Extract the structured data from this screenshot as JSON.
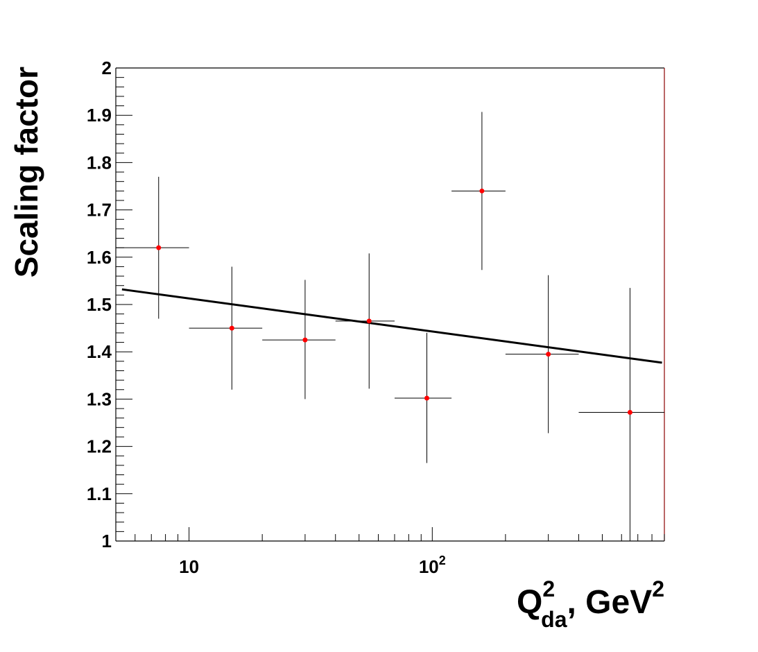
{
  "chart_data": {
    "type": "scatter",
    "title": "",
    "xlabel": {
      "main": "Q",
      "sup": "2",
      "sub": "da",
      "suffix": ", GeV",
      "suffix_sup": "2"
    },
    "ylabel": "Scaling factor",
    "x_scale": "log",
    "xlim": [
      5,
      900
    ],
    "ylim": [
      1,
      2
    ],
    "grid": false,
    "legend": "none",
    "y_ticks": [
      "1",
      "1.1",
      "1.2",
      "1.3",
      "1.4",
      "1.5",
      "1.6",
      "1.7",
      "1.8",
      "1.9",
      "2"
    ],
    "x_tick_labels": [
      {
        "value": 10,
        "base": "10",
        "exp": ""
      },
      {
        "value": 100,
        "base": "10",
        "exp": "2"
      }
    ],
    "series": [
      {
        "marker_color": "#ff0000",
        "points": [
          {
            "x": 7.5,
            "xlow": 5,
            "xhigh": 10,
            "y": 1.62,
            "ylow": 1.47,
            "yhigh": 1.77
          },
          {
            "x": 15,
            "xlow": 10,
            "xhigh": 20,
            "y": 1.45,
            "ylow": 1.32,
            "yhigh": 1.58
          },
          {
            "x": 30,
            "xlow": 20,
            "xhigh": 40,
            "y": 1.425,
            "ylow": 1.3,
            "yhigh": 1.552
          },
          {
            "x": 55,
            "xlow": 40,
            "xhigh": 70,
            "y": 1.465,
            "ylow": 1.322,
            "yhigh": 1.608
          },
          {
            "x": 95,
            "xlow": 70,
            "xhigh": 120,
            "y": 1.302,
            "ylow": 1.165,
            "yhigh": 1.44
          },
          {
            "x": 160,
            "xlow": 120,
            "xhigh": 200,
            "y": 1.74,
            "ylow": 1.573,
            "yhigh": 1.907
          },
          {
            "x": 300,
            "xlow": 200,
            "xhigh": 400,
            "y": 1.395,
            "ylow": 1.228,
            "yhigh": 1.562
          },
          {
            "x": 650,
            "xlow": 400,
            "xhigh": 900,
            "y": 1.272,
            "ylow": 1.0,
            "yhigh": 1.535
          }
        ]
      }
    ],
    "fit_line": {
      "color": "#000000",
      "points": [
        {
          "x": 5.3,
          "y": 1.532
        },
        {
          "x": 880,
          "y": 1.377
        }
      ]
    }
  }
}
